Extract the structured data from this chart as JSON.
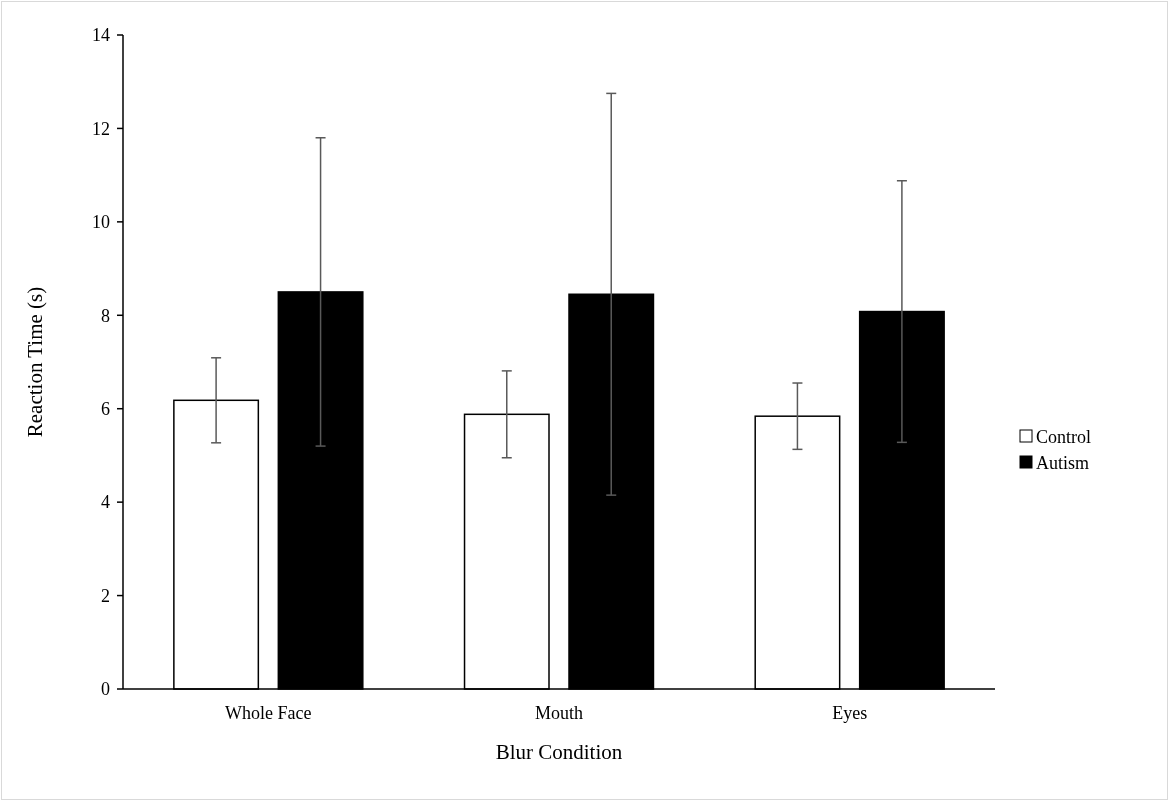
{
  "chart_data": {
    "type": "bar",
    "xlabel": "Blur Condition",
    "ylabel": "Reaction Time (s)",
    "categories": [
      "Whole Face",
      "Mouth",
      "Eyes"
    ],
    "series": [
      {
        "name": "Control",
        "color": "#ffffff",
        "values": [
          6.18,
          5.88,
          5.84
        ],
        "errors": [
          0.91,
          0.93,
          0.71
        ]
      },
      {
        "name": "Autism",
        "color": "#000000",
        "values": [
          8.5,
          8.45,
          8.08
        ],
        "errors": [
          3.3,
          4.3,
          2.8
        ]
      }
    ],
    "ylim": [
      0,
      14
    ],
    "yticks": [
      0,
      2,
      4,
      6,
      8,
      10,
      12,
      14
    ],
    "grid": false,
    "legend": "right"
  }
}
